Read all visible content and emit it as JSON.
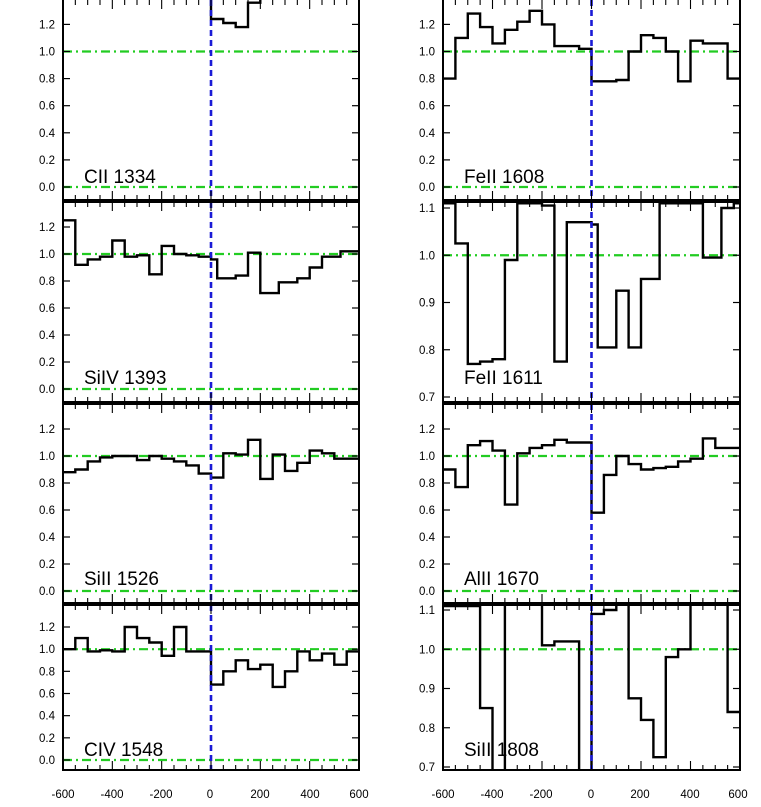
{
  "chart_data": [
    {
      "type": "line",
      "subtype": "step-spectrum",
      "ion": "CII 1334",
      "xlim": [
        -600,
        600
      ],
      "ylim": [
        -0.08,
        1.45
      ],
      "yticks": [
        "0.0",
        "0.2",
        "0.4",
        "0.6",
        "0.8",
        "1.0",
        "1.2"
      ],
      "reference_lines": [
        0.0,
        1.0
      ],
      "velocity_marker": 0,
      "steps": [
        [
          -600,
          1.42
        ],
        [
          -550,
          1.4
        ],
        [
          -500,
          1.42
        ],
        [
          -450,
          1.48
        ],
        [
          -400,
          1.5
        ],
        [
          -350,
          1.48
        ],
        [
          -300,
          1.46
        ],
        [
          -250,
          1.5
        ],
        [
          -200,
          1.52
        ],
        [
          -150,
          1.48
        ],
        [
          -100,
          1.47
        ],
        [
          -50,
          1.52
        ],
        [
          0,
          1.24
        ],
        [
          50,
          1.21
        ],
        [
          100,
          1.18
        ],
        [
          150,
          1.36
        ],
        [
          200,
          1.48
        ],
        [
          250,
          1.5
        ],
        [
          300,
          1.52
        ],
        [
          350,
          1.5
        ],
        [
          400,
          1.48
        ],
        [
          450,
          1.5
        ],
        [
          500,
          1.52
        ],
        [
          550,
          1.5
        ]
      ]
    },
    {
      "type": "line",
      "subtype": "step-spectrum",
      "ion": "SiIV 1393",
      "xlim": [
        -600,
        600
      ],
      "ylim": [
        -0.08,
        1.45
      ],
      "yticks": [
        "0.0",
        "0.2",
        "0.4",
        "0.6",
        "0.8",
        "1.0",
        "1.2"
      ],
      "reference_lines": [
        0.0,
        1.0
      ],
      "velocity_marker": 0,
      "steps": [
        [
          -600,
          1.25
        ],
        [
          -550,
          0.92
        ],
        [
          -500,
          0.96
        ],
        [
          -450,
          0.98
        ],
        [
          -400,
          1.1
        ],
        [
          -350,
          0.98
        ],
        [
          -300,
          0.99
        ],
        [
          -250,
          0.85
        ],
        [
          -200,
          1.06
        ],
        [
          -150,
          1.0
        ],
        [
          -100,
          0.99
        ],
        [
          -50,
          0.98
        ],
        [
          0,
          0.96
        ],
        [
          25,
          0.82
        ],
        [
          100,
          0.84
        ],
        [
          150,
          1.01
        ],
        [
          200,
          0.71
        ],
        [
          275,
          0.79
        ],
        [
          350,
          0.82
        ],
        [
          400,
          0.9
        ],
        [
          450,
          0.98
        ],
        [
          525,
          1.02
        ],
        [
          575,
          1.02
        ]
      ]
    },
    {
      "type": "line",
      "subtype": "step-spectrum",
      "ion": "SiII 1526",
      "xlim": [
        -600,
        600
      ],
      "ylim": [
        -0.08,
        1.45
      ],
      "yticks": [
        "0.0",
        "0.2",
        "0.4",
        "0.6",
        "0.8",
        "1.0",
        "1.2"
      ],
      "reference_lines": [
        0.0,
        1.0
      ],
      "velocity_marker": 0,
      "steps": [
        [
          -600,
          0.88
        ],
        [
          -550,
          0.9
        ],
        [
          -500,
          0.96
        ],
        [
          -450,
          0.99
        ],
        [
          -400,
          1.0
        ],
        [
          -350,
          1.0
        ],
        [
          -300,
          0.97
        ],
        [
          -250,
          1.0
        ],
        [
          -200,
          0.98
        ],
        [
          -150,
          0.96
        ],
        [
          -100,
          0.93
        ],
        [
          -50,
          0.87
        ],
        [
          0,
          0.84
        ],
        [
          50,
          1.02
        ],
        [
          100,
          1.01
        ],
        [
          150,
          1.12
        ],
        [
          200,
          0.83
        ],
        [
          250,
          1.01
        ],
        [
          300,
          0.89
        ],
        [
          350,
          0.95
        ],
        [
          400,
          1.04
        ],
        [
          450,
          1.02
        ],
        [
          500,
          0.98
        ],
        [
          550,
          0.98
        ]
      ]
    },
    {
      "type": "line",
      "subtype": "step-spectrum",
      "ion": "CIV 1548",
      "xlim": [
        -600,
        600
      ],
      "ylim": [
        -0.08,
        1.45
      ],
      "yticks": [
        "0.0",
        "0.2",
        "0.4",
        "0.6",
        "0.8",
        "1.0",
        "1.2"
      ],
      "reference_lines": [
        0.0,
        1.0
      ],
      "velocity_marker": 0,
      "steps": [
        [
          -600,
          1.0
        ],
        [
          -550,
          1.1
        ],
        [
          -500,
          0.98
        ],
        [
          -450,
          0.99
        ],
        [
          -400,
          0.98
        ],
        [
          -350,
          1.2
        ],
        [
          -300,
          1.1
        ],
        [
          -250,
          1.06
        ],
        [
          -200,
          0.94
        ],
        [
          -150,
          1.2
        ],
        [
          -100,
          0.98
        ],
        [
          -50,
          0.98
        ],
        [
          0,
          0.68
        ],
        [
          50,
          0.8
        ],
        [
          100,
          0.9
        ],
        [
          150,
          0.82
        ],
        [
          200,
          0.86
        ],
        [
          250,
          0.66
        ],
        [
          300,
          0.8
        ],
        [
          350,
          0.98
        ],
        [
          400,
          0.9
        ],
        [
          450,
          0.96
        ],
        [
          500,
          0.86
        ],
        [
          550,
          0.98
        ]
      ]
    },
    {
      "type": "line",
      "subtype": "step-spectrum",
      "ion": "FeII 1608",
      "xlim": [
        -600,
        600
      ],
      "ylim": [
        -0.08,
        1.45
      ],
      "yticks": [
        "0.0",
        "0.2",
        "0.4",
        "0.6",
        "0.8",
        "1.0",
        "1.2"
      ],
      "reference_lines": [
        0.0,
        1.0
      ],
      "velocity_marker": 0,
      "steps": [
        [
          -600,
          0.8
        ],
        [
          -550,
          1.1
        ],
        [
          -500,
          1.28
        ],
        [
          -450,
          1.18
        ],
        [
          -400,
          1.06
        ],
        [
          -350,
          1.16
        ],
        [
          -300,
          1.22
        ],
        [
          -250,
          1.3
        ],
        [
          -200,
          1.2
        ],
        [
          -150,
          1.04
        ],
        [
          -100,
          1.04
        ],
        [
          -50,
          1.02
        ],
        [
          0,
          0.78
        ],
        [
          50,
          0.78
        ],
        [
          100,
          0.79
        ],
        [
          150,
          1.0
        ],
        [
          200,
          1.12
        ],
        [
          250,
          1.1
        ],
        [
          300,
          1.0
        ],
        [
          350,
          0.78
        ],
        [
          400,
          1.08
        ],
        [
          450,
          1.06
        ],
        [
          500,
          1.06
        ],
        [
          550,
          0.8
        ]
      ]
    },
    {
      "type": "line",
      "subtype": "step-spectrum",
      "ion": "FeII 1611",
      "xlim": [
        -600,
        600
      ],
      "ylim": [
        0.69,
        1.115
      ],
      "yticks": [
        "0.7",
        "0.8",
        "0.9",
        "1.0",
        "1.1"
      ],
      "reference_lines": [
        1.0
      ],
      "velocity_marker": 0,
      "steps": [
        [
          -600,
          1.11
        ],
        [
          -550,
          1.025
        ],
        [
          -500,
          0.77
        ],
        [
          -450,
          0.775
        ],
        [
          -400,
          0.78
        ],
        [
          -350,
          0.99
        ],
        [
          -300,
          1.11
        ],
        [
          -250,
          1.11
        ],
        [
          -200,
          1.105
        ],
        [
          -150,
          0.775
        ],
        [
          -100,
          1.07
        ],
        [
          -50,
          1.07
        ],
        [
          0,
          1.065
        ],
        [
          25,
          0.805
        ],
        [
          100,
          0.925
        ],
        [
          150,
          0.805
        ],
        [
          200,
          0.95
        ],
        [
          275,
          1.11
        ],
        [
          350,
          1.11
        ],
        [
          400,
          1.11
        ],
        [
          450,
          0.995
        ],
        [
          525,
          1.1
        ],
        [
          575,
          1.11
        ]
      ]
    },
    {
      "type": "line",
      "subtype": "step-spectrum",
      "ion": "AlII 1670",
      "xlim": [
        -600,
        600
      ],
      "ylim": [
        -0.08,
        1.45
      ],
      "yticks": [
        "0.0",
        "0.2",
        "0.4",
        "0.6",
        "0.8",
        "1.0",
        "1.2"
      ],
      "reference_lines": [
        0.0,
        1.0
      ],
      "velocity_marker": 0,
      "steps": [
        [
          -600,
          0.9
        ],
        [
          -550,
          0.77
        ],
        [
          -500,
          1.08
        ],
        [
          -450,
          1.11
        ],
        [
          -400,
          1.04
        ],
        [
          -350,
          0.64
        ],
        [
          -300,
          1.02
        ],
        [
          -250,
          1.06
        ],
        [
          -200,
          1.08
        ],
        [
          -150,
          1.12
        ],
        [
          -100,
          1.1
        ],
        [
          -50,
          1.1
        ],
        [
          0,
          0.58
        ],
        [
          50,
          0.86
        ],
        [
          100,
          1.0
        ],
        [
          150,
          0.94
        ],
        [
          200,
          0.9
        ],
        [
          250,
          0.91
        ],
        [
          300,
          0.92
        ],
        [
          350,
          0.96
        ],
        [
          400,
          0.98
        ],
        [
          450,
          1.13
        ],
        [
          500,
          1.06
        ],
        [
          550,
          1.06
        ]
      ]
    },
    {
      "type": "line",
      "subtype": "step-spectrum",
      "ion": "SiII 1808",
      "xlim": [
        -600,
        600
      ],
      "ylim": [
        0.69,
        1.115
      ],
      "yticks": [
        "0.7",
        "0.8",
        "0.9",
        "1.0",
        "1.1"
      ],
      "reference_lines": [
        1.0
      ],
      "velocity_marker": 0,
      "steps": [
        [
          -600,
          1.11
        ],
        [
          -550,
          1.11
        ],
        [
          -500,
          1.11
        ],
        [
          -450,
          0.85
        ],
        [
          -400,
          0.6
        ],
        [
          -350,
          1.12
        ],
        [
          -300,
          1.12
        ],
        [
          -250,
          1.12
        ],
        [
          -200,
          1.01
        ],
        [
          -150,
          1.02
        ],
        [
          -100,
          1.02
        ],
        [
          -50,
          0.6
        ],
        [
          0,
          1.09
        ],
        [
          50,
          1.1
        ],
        [
          100,
          1.12
        ],
        [
          150,
          0.875
        ],
        [
          200,
          0.82
        ],
        [
          250,
          0.725
        ],
        [
          300,
          0.98
        ],
        [
          350,
          1.0
        ],
        [
          400,
          1.12
        ],
        [
          450,
          1.12
        ],
        [
          500,
          1.12
        ],
        [
          550,
          0.84
        ]
      ]
    }
  ],
  "x_axis": {
    "left_ticks": [
      "-600",
      "-400",
      "-200",
      "0",
      "200",
      "400",
      "600"
    ],
    "right_ticks": [
      "-600",
      "-400",
      "-200",
      "0",
      "200",
      "400",
      "600"
    ]
  },
  "colors": {
    "spectrum": "#000000",
    "reference_line": "#22cc22",
    "velocity_marker": "#1a1ad6",
    "frame": "#000000"
  }
}
